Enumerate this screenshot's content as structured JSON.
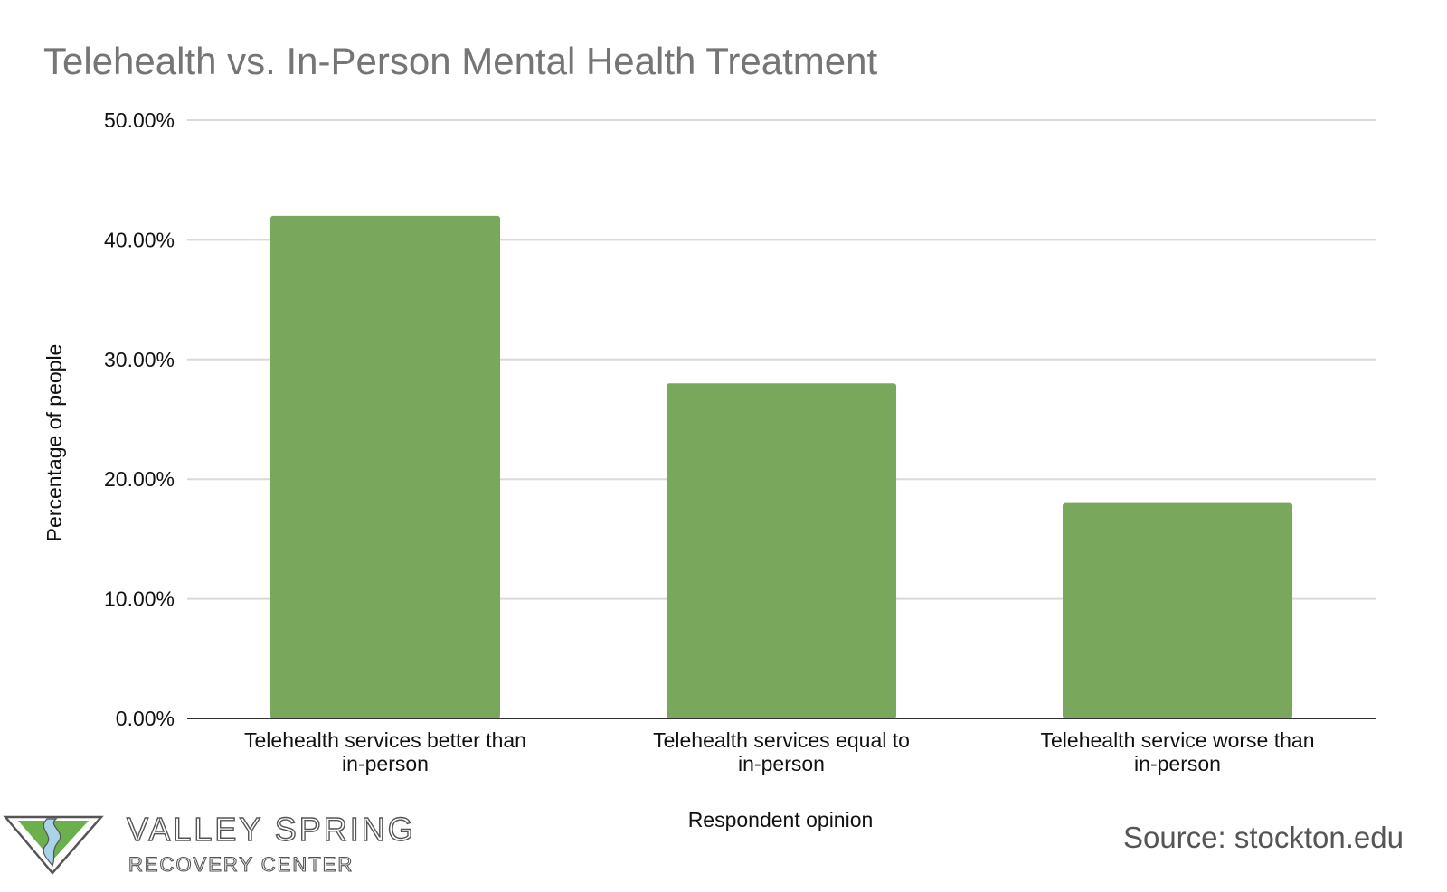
{
  "chart_data": {
    "type": "bar",
    "title": "Telehealth vs. In-Person Mental Health Treatment",
    "categories": [
      [
        "Telehealth services better than",
        "in-person"
      ],
      [
        "Telehealth services equal to",
        "in-person"
      ],
      [
        "Telehealth service worse than",
        "in-person"
      ]
    ],
    "values": [
      42.0,
      28.0,
      18.0
    ],
    "ylim": [
      0,
      50
    ],
    "yticks": [
      "0.00%",
      "10.00%",
      "20.00%",
      "30.00%",
      "40.00%",
      "50.00%"
    ],
    "xlabel": "Respondent opinion",
    "ylabel": "Percentage of people",
    "grid": true,
    "bar_color": "#79a75b"
  },
  "footer": {
    "source": "Source: stockton.edu",
    "logo": {
      "name_line1": "VALLEY SPRING",
      "name_line2": "RECOVERY CENTER",
      "icon": "valley-spring-logo-icon",
      "colors": {
        "green": "#6bb04a",
        "blue": "#a9d3e6",
        "outline": "#555555"
      }
    }
  }
}
